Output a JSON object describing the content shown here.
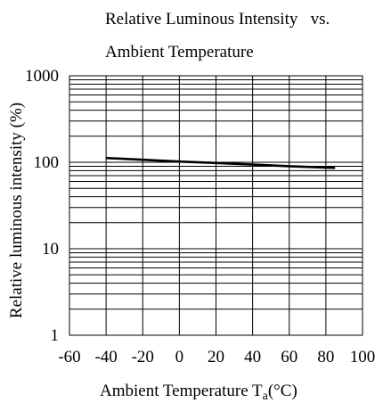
{
  "chart_data": {
    "type": "line",
    "title_line1": "Relative Luminous Intensity   vs.",
    "title_line2": "Ambient Temperature",
    "xlabel": "Ambient Temperature T",
    "xlabel_subscript": "a",
    "xlabel_unit": "(°C)",
    "ylabel": "Relative luminous intensity (%)",
    "x_ticks": [
      "-60",
      "-40",
      "-20",
      "0",
      "20",
      "40",
      "60",
      "80",
      "100"
    ],
    "y_ticks": [
      "1",
      "10",
      "100",
      "1000"
    ],
    "xlim": [
      -60,
      100
    ],
    "ylim": [
      1,
      1000
    ],
    "y_scale": "log",
    "grid": true,
    "series": [
      {
        "x": [
          -40,
          -20,
          0,
          20,
          40,
          60,
          85
        ],
        "y": [
          112,
          107,
          102,
          98,
          94,
          90,
          86
        ]
      }
    ],
    "line_color": "#000000"
  }
}
